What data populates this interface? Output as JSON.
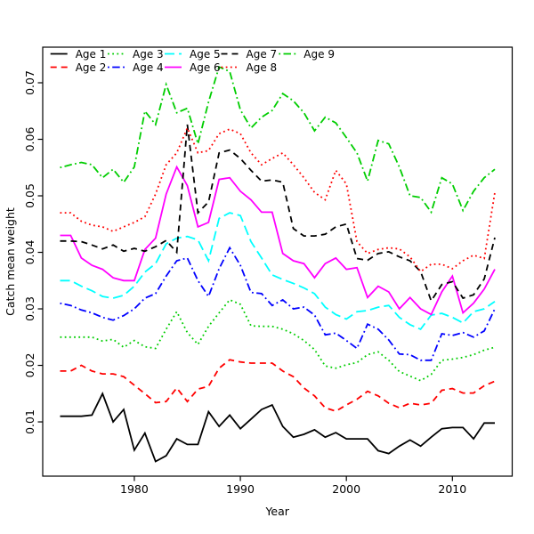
{
  "figure": {
    "xlabel": "Year",
    "ylabel": "Catch mean weight",
    "background": "#ffffff",
    "axis_color": "#000000"
  },
  "chart_data": {
    "type": "line",
    "title": "",
    "xlabel": "Year",
    "ylabel": "Catch mean weight",
    "xlim": [
      1971.36,
      2015.64
    ],
    "ylim": [
      0.0004,
      0.0763
    ],
    "grid": false,
    "legend_position": "top-left",
    "legend_columns": 5,
    "x_ticks": [
      1980,
      1990,
      2000,
      2010
    ],
    "x_tick_labels": [
      "1980",
      "1990",
      "2000",
      "2010"
    ],
    "y_ticks": [
      0.01,
      0.02,
      0.03,
      0.04,
      0.05,
      0.06,
      0.07
    ],
    "y_tick_labels": [
      "0.01",
      "0.02",
      "0.03",
      "0.04",
      "0.05",
      "0.06",
      "0.07"
    ],
    "x": [
      1973,
      1974,
      1975,
      1976,
      1977,
      1978,
      1979,
      1980,
      1981,
      1982,
      1983,
      1984,
      1985,
      1986,
      1987,
      1988,
      1989,
      1990,
      1991,
      1992,
      1993,
      1994,
      1995,
      1996,
      1997,
      1998,
      1999,
      2000,
      2001,
      2002,
      2003,
      2004,
      2005,
      2006,
      2007,
      2008,
      2009,
      2010,
      2011,
      2012,
      2013,
      2014
    ],
    "series": [
      {
        "name": "Age 1",
        "color": "#000000",
        "linetype": "solid",
        "values": [
          0.011,
          0.011,
          0.011,
          0.0112,
          0.015,
          0.01,
          0.0122,
          0.005,
          0.008,
          0.003,
          0.004,
          0.007,
          0.006,
          0.006,
          0.0118,
          0.0092,
          0.0112,
          0.0088,
          0.0105,
          0.0122,
          0.013,
          0.0092,
          0.0073,
          0.0078,
          0.0086,
          0.0073,
          0.0081,
          0.007,
          0.007,
          0.007,
          0.0049,
          0.0044,
          0.0057,
          0.0068,
          0.0057,
          0.0073,
          0.0088,
          0.009,
          0.009,
          0.007,
          0.0098,
          0.0098
        ]
      },
      {
        "name": "Age 2",
        "color": "#ff0000",
        "linetype": "dashed",
        "values": [
          0.019,
          0.019,
          0.02,
          0.019,
          0.0185,
          0.0185,
          0.018,
          0.0165,
          0.015,
          0.0134,
          0.0136,
          0.016,
          0.0136,
          0.0158,
          0.0163,
          0.0195,
          0.021,
          0.0206,
          0.0204,
          0.0204,
          0.0204,
          0.019,
          0.018,
          0.016,
          0.0146,
          0.0125,
          0.0119,
          0.013,
          0.014,
          0.0154,
          0.0146,
          0.0133,
          0.0125,
          0.0133,
          0.013,
          0.0133,
          0.0156,
          0.0159,
          0.0151,
          0.0151,
          0.0164,
          0.0172
        ]
      },
      {
        "name": "Age 3",
        "color": "#00cd00",
        "linetype": "dotted",
        "values": [
          0.025,
          0.025,
          0.025,
          0.025,
          0.0243,
          0.0246,
          0.0232,
          0.0244,
          0.0233,
          0.023,
          0.0264,
          0.0295,
          0.0258,
          0.0237,
          0.0269,
          0.0293,
          0.0316,
          0.0308,
          0.027,
          0.0269,
          0.0269,
          0.0264,
          0.0256,
          0.0244,
          0.0228,
          0.0199,
          0.0195,
          0.0201,
          0.0205,
          0.0219,
          0.0224,
          0.0209,
          0.0189,
          0.0181,
          0.0173,
          0.0184,
          0.0209,
          0.0211,
          0.0214,
          0.0219,
          0.0227,
          0.0232
        ]
      },
      {
        "name": "Age 4",
        "color": "#0000ff",
        "linetype": "dotdash",
        "values": [
          0.031,
          0.0306,
          0.0298,
          0.0293,
          0.0285,
          0.028,
          0.0288,
          0.03,
          0.0319,
          0.0327,
          0.0358,
          0.0385,
          0.039,
          0.035,
          0.0322,
          0.0371,
          0.0408,
          0.0377,
          0.0329,
          0.0327,
          0.0306,
          0.0316,
          0.03,
          0.0303,
          0.0289,
          0.0254,
          0.0257,
          0.0244,
          0.023,
          0.0273,
          0.0264,
          0.0245,
          0.022,
          0.0219,
          0.0209,
          0.0209,
          0.0256,
          0.0253,
          0.0258,
          0.025,
          0.0261,
          0.03
        ]
      },
      {
        "name": "Age 5",
        "color": "#00ffff",
        "linetype": "longdash",
        "values": [
          0.035,
          0.035,
          0.034,
          0.0332,
          0.0322,
          0.0319,
          0.0324,
          0.034,
          0.0365,
          0.038,
          0.0415,
          0.0425,
          0.0428,
          0.0422,
          0.0385,
          0.046,
          0.047,
          0.0465,
          0.0419,
          0.039,
          0.036,
          0.0352,
          0.0345,
          0.0337,
          0.0327,
          0.0303,
          0.029,
          0.0282,
          0.0295,
          0.0297,
          0.0303,
          0.0306,
          0.0285,
          0.0272,
          0.0264,
          0.0289,
          0.0292,
          0.0285,
          0.0275,
          0.0295,
          0.03,
          0.0313
        ]
      },
      {
        "name": "Age 6",
        "color": "#ff00ff",
        "linetype": "solid",
        "values": [
          0.043,
          0.043,
          0.039,
          0.0377,
          0.037,
          0.0355,
          0.035,
          0.035,
          0.0405,
          0.0425,
          0.0503,
          0.0551,
          0.0518,
          0.0445,
          0.0453,
          0.0529,
          0.0532,
          0.0508,
          0.0493,
          0.0471,
          0.0471,
          0.0398,
          0.0385,
          0.038,
          0.0355,
          0.038,
          0.039,
          0.037,
          0.0373,
          0.032,
          0.034,
          0.033,
          0.03,
          0.032,
          0.03,
          0.029,
          0.033,
          0.0358,
          0.0293,
          0.031,
          0.0335,
          0.037
        ]
      },
      {
        "name": "Age 7",
        "color": "#000000",
        "linetype": "dashed",
        "values": [
          0.042,
          0.042,
          0.0419,
          0.0413,
          0.0406,
          0.0413,
          0.0402,
          0.0407,
          0.0402,
          0.041,
          0.0421,
          0.04,
          0.0626,
          0.047,
          0.0489,
          0.0576,
          0.0581,
          0.0566,
          0.0545,
          0.0526,
          0.0528,
          0.0524,
          0.0442,
          0.0429,
          0.0429,
          0.0432,
          0.0445,
          0.045,
          0.0389,
          0.0386,
          0.0398,
          0.0401,
          0.0392,
          0.0385,
          0.0366,
          0.0314,
          0.0343,
          0.0348,
          0.0319,
          0.0325,
          0.0353,
          0.0426
        ]
      },
      {
        "name": "Age 8",
        "color": "#ff0000",
        "linetype": "dotted",
        "values": [
          0.047,
          0.047,
          0.0455,
          0.0448,
          0.0445,
          0.0437,
          0.0445,
          0.0453,
          0.0463,
          0.0503,
          0.0555,
          0.0576,
          0.062,
          0.0576,
          0.058,
          0.061,
          0.0618,
          0.061,
          0.0576,
          0.0555,
          0.0566,
          0.0576,
          0.0555,
          0.0532,
          0.0506,
          0.0493,
          0.0545,
          0.0521,
          0.0419,
          0.0398,
          0.0405,
          0.0408,
          0.0406,
          0.0392,
          0.0366,
          0.0379,
          0.0379,
          0.0371,
          0.0385,
          0.0395,
          0.0389,
          0.0506
        ]
      },
      {
        "name": "Age 9",
        "color": "#00cd00",
        "linetype": "dotdash",
        "values": [
          0.055,
          0.0555,
          0.0559,
          0.0555,
          0.0532,
          0.0547,
          0.0524,
          0.0551,
          0.065,
          0.0626,
          0.0697,
          0.0647,
          0.0655,
          0.0592,
          0.0666,
          0.0728,
          0.072,
          0.0652,
          0.062,
          0.0639,
          0.0651,
          0.0681,
          0.0668,
          0.0647,
          0.0615,
          0.0639,
          0.0629,
          0.0603,
          0.0576,
          0.0526,
          0.0598,
          0.0592,
          0.0551,
          0.05,
          0.0497,
          0.0471,
          0.0532,
          0.0521,
          0.0474,
          0.0508,
          0.0532,
          0.0547
        ]
      }
    ]
  }
}
